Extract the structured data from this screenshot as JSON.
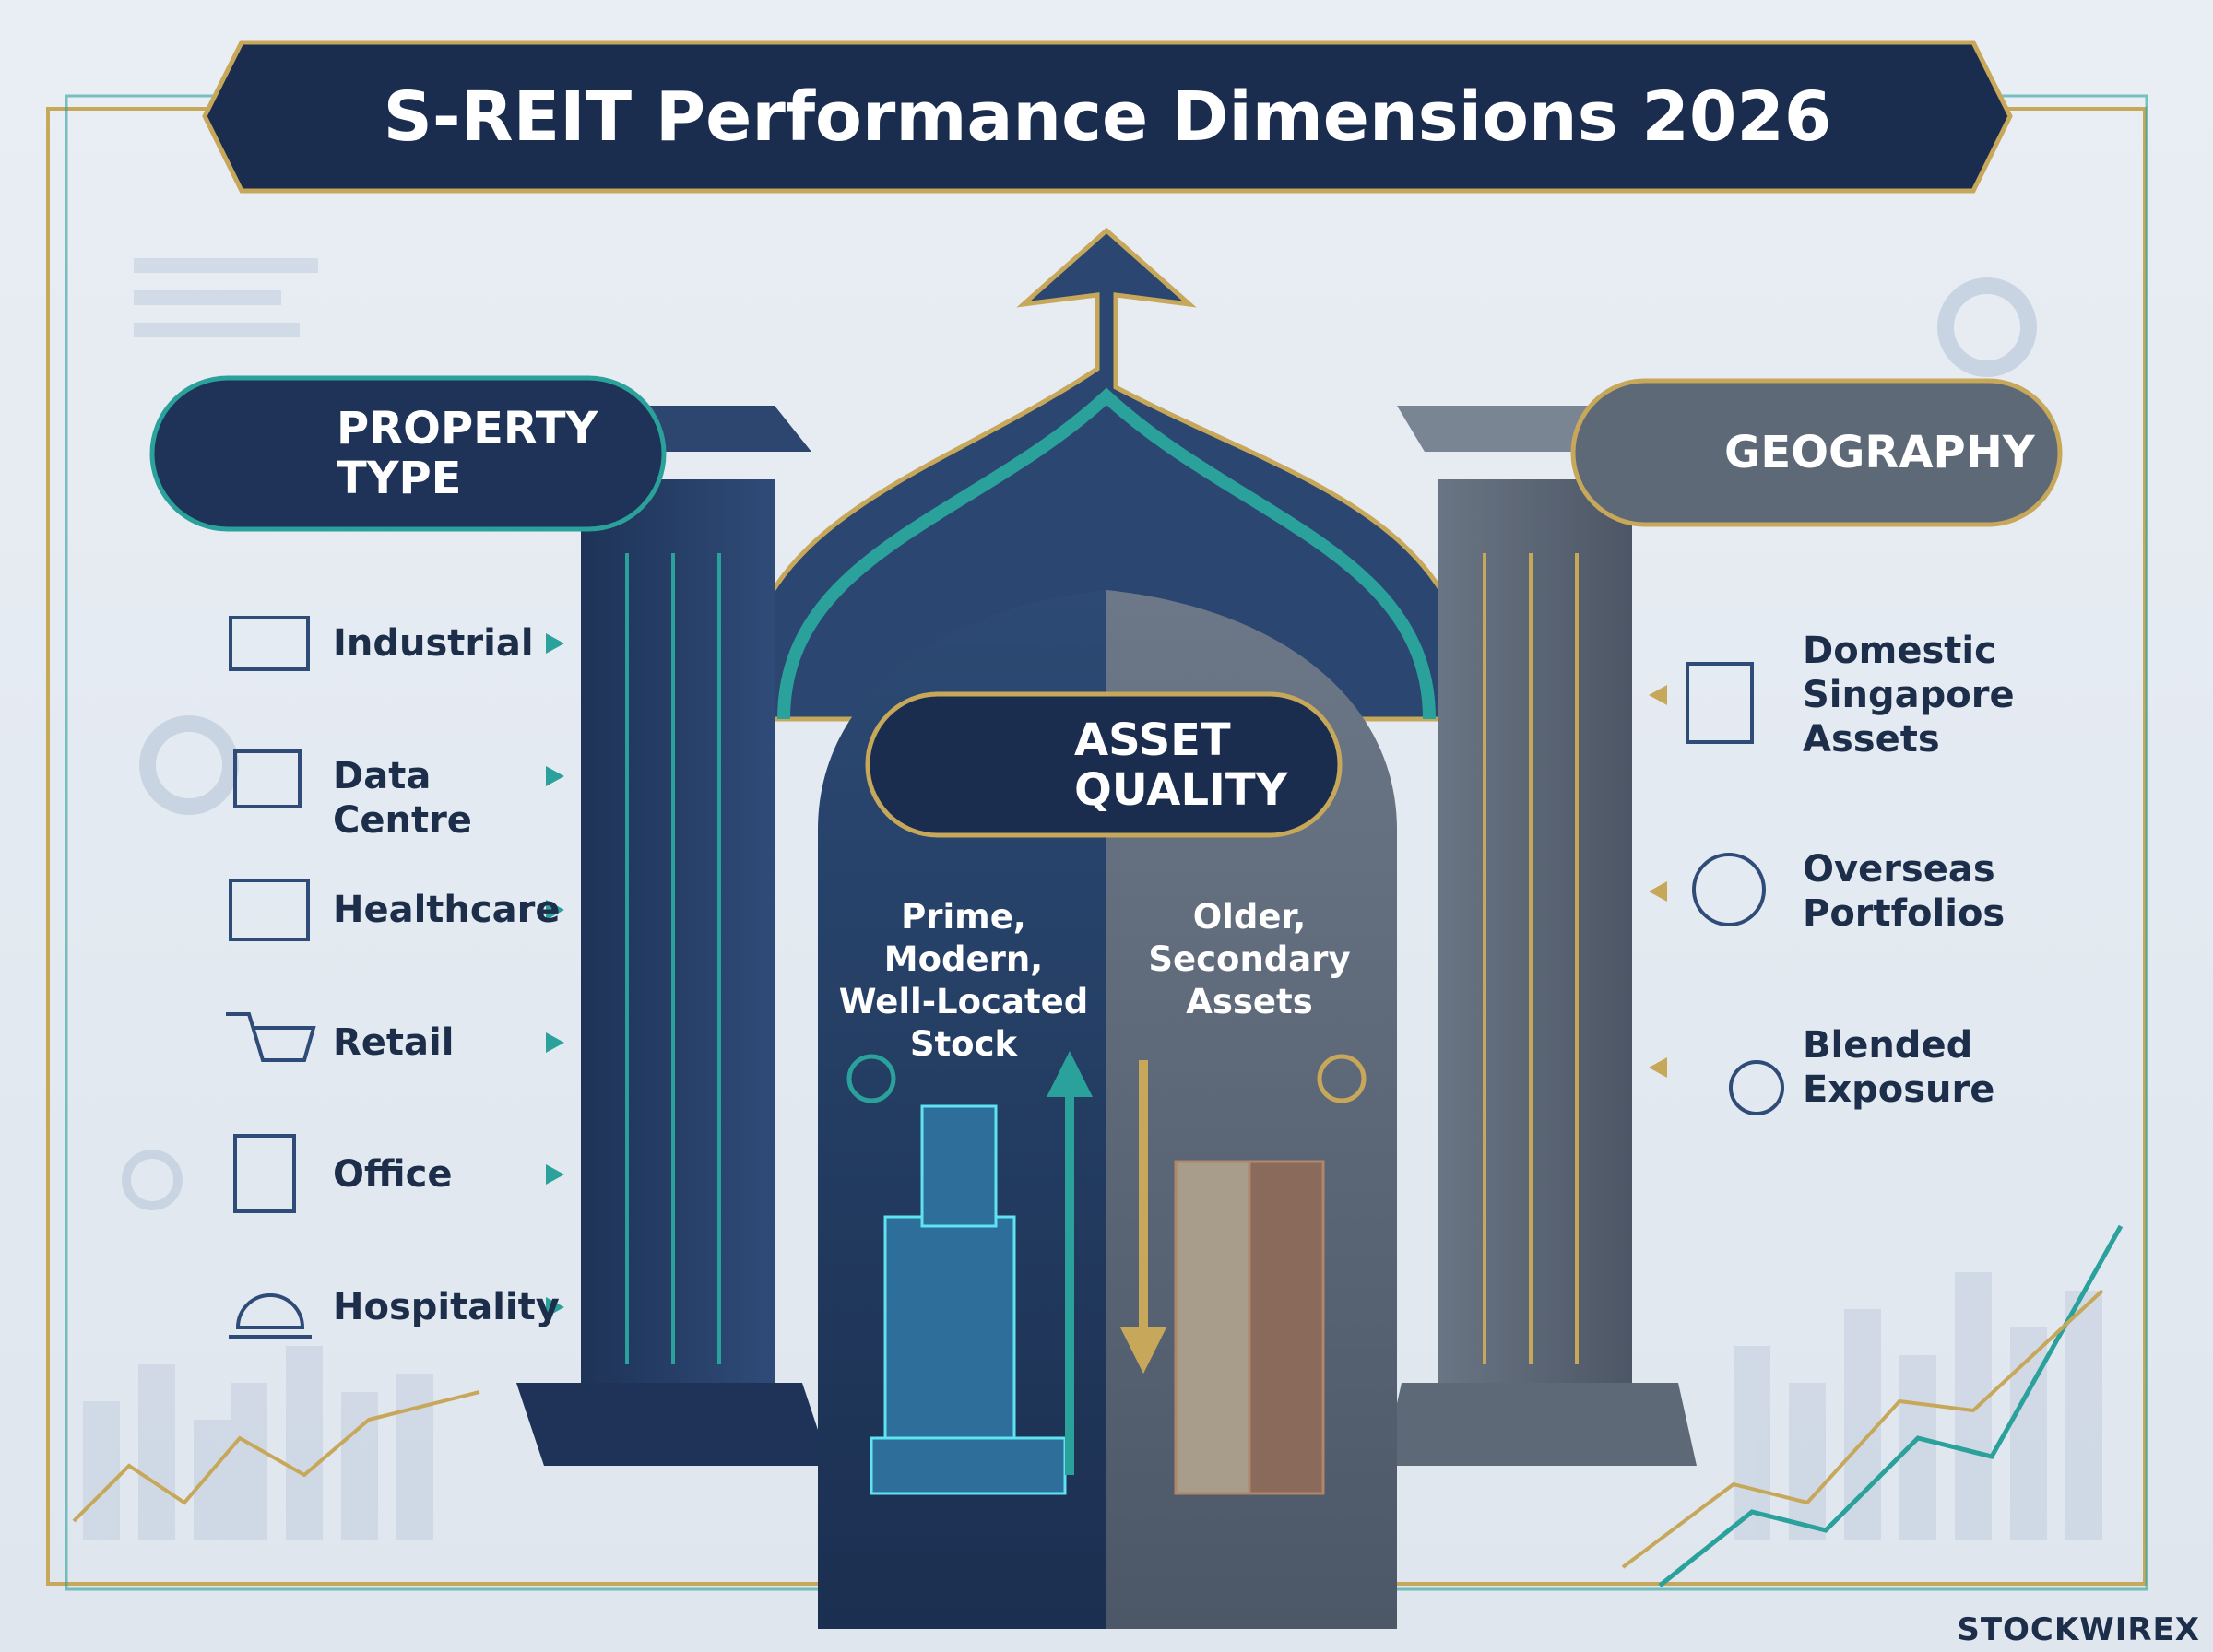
{
  "header": {
    "title": "S-REIT Performance Dimensions 2026"
  },
  "property_type": {
    "label": "PROPERTY TYPE",
    "items": [
      "Industrial",
      "Data Centre",
      "Healthcare",
      "Retail",
      "Office",
      "Hospitality"
    ]
  },
  "asset_quality": {
    "label": "ASSET QUALITY",
    "prime": "Prime, Modern, Well-Located Stock",
    "older": "Older, Secondary Assets"
  },
  "geography": {
    "label": "GEOGRAPHY",
    "items": [
      "Domestic Singapore Assets",
      "Overseas Portfolios",
      "Blended Exposure"
    ]
  },
  "brand": "STOCKWIREX"
}
